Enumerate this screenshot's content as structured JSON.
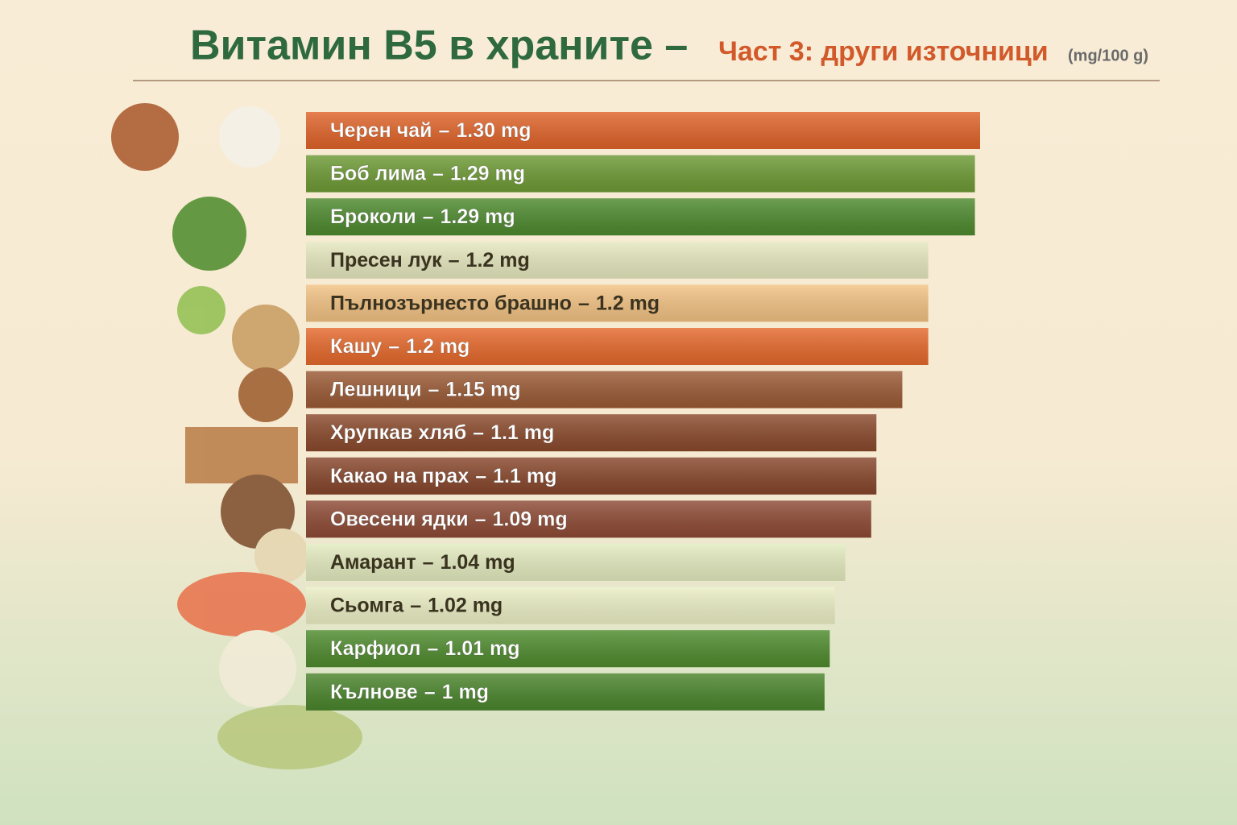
{
  "chart_data": {
    "type": "bar",
    "orientation": "horizontal",
    "title": "Витамин B5 в храните –",
    "subtitle": "Част 3: други източници",
    "unit_note": "(mg/100 g)",
    "separator": "–",
    "categories": [
      "Черен чай",
      "Боб лима",
      "Броколи",
      "Пресен лук",
      "Пълнозърнесто брашно",
      "Кашу",
      "Лешници",
      "Хрупкав хляб",
      "Какао на прах",
      "Овесени ядки",
      "Амарант",
      "Сьомга",
      "Карфиол",
      "Кълнове"
    ],
    "values": [
      1.3,
      1.29,
      1.29,
      1.2,
      1.2,
      1.2,
      1.15,
      1.1,
      1.1,
      1.09,
      1.04,
      1.02,
      1.01,
      1
    ],
    "value_labels": [
      "1.30 mg",
      "1.29 mg",
      "1.29 mg",
      "1.2 mg",
      "1.2 mg",
      "1.2 mg",
      "1.15 mg",
      "1.1 mg",
      "1.1 mg",
      "1.09 mg",
      "1.04 mg",
      "1.02 mg",
      "1.01 mg",
      "1 mg"
    ],
    "colors": [
      "#e0642a",
      "#6e9a35",
      "#4e8a2e",
      "#e6e8bf",
      "#f2c283",
      "#e5692c",
      "#9a5a35",
      "#8a4a2c",
      "#87462b",
      "#8e4a35",
      "#e3ebbf",
      "#ecefc5",
      "#4f8b2e",
      "#4a852c"
    ]
  }
}
